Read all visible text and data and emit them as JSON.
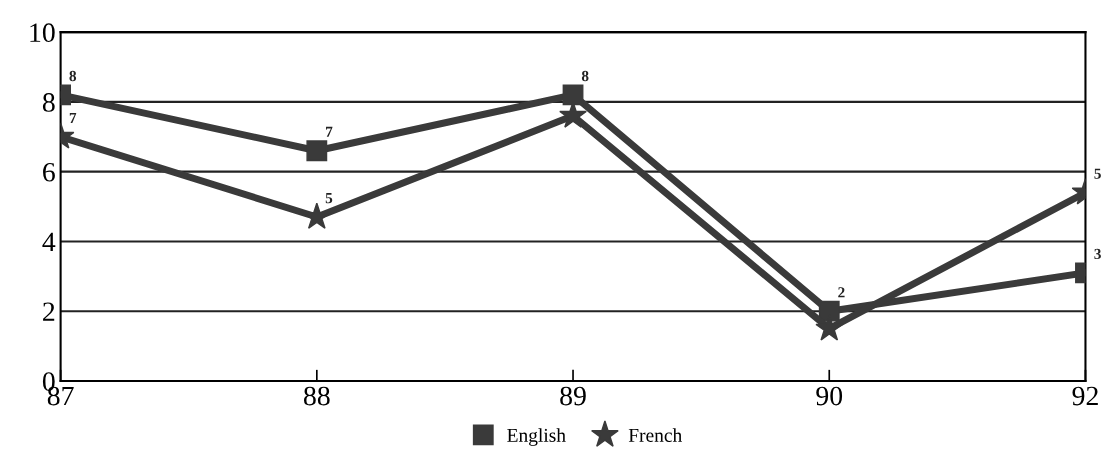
{
  "chart_data": {
    "type": "line",
    "categories": [
      "87",
      "88",
      "89",
      "90",
      "92"
    ],
    "series": [
      {
        "name": "English",
        "color": "#3a3a3a",
        "marker": "square",
        "values": [
          8.2,
          6.6,
          8.2,
          2.0,
          3.1
        ],
        "value_labels": [
          "8",
          "7",
          "8",
          "2",
          "3"
        ]
      },
      {
        "name": "French",
        "color": "#3a3a3a",
        "marker": "star",
        "values": [
          7.0,
          4.7,
          7.6,
          1.5,
          5.4
        ],
        "value_labels": [
          "7",
          "5",
          null,
          null,
          "5"
        ]
      }
    ],
    "ylim": [
      0,
      10
    ],
    "yticks": [
      0,
      2,
      4,
      6,
      8,
      10
    ],
    "grid": "y",
    "legend": "bottom",
    "line_style": "solid"
  }
}
